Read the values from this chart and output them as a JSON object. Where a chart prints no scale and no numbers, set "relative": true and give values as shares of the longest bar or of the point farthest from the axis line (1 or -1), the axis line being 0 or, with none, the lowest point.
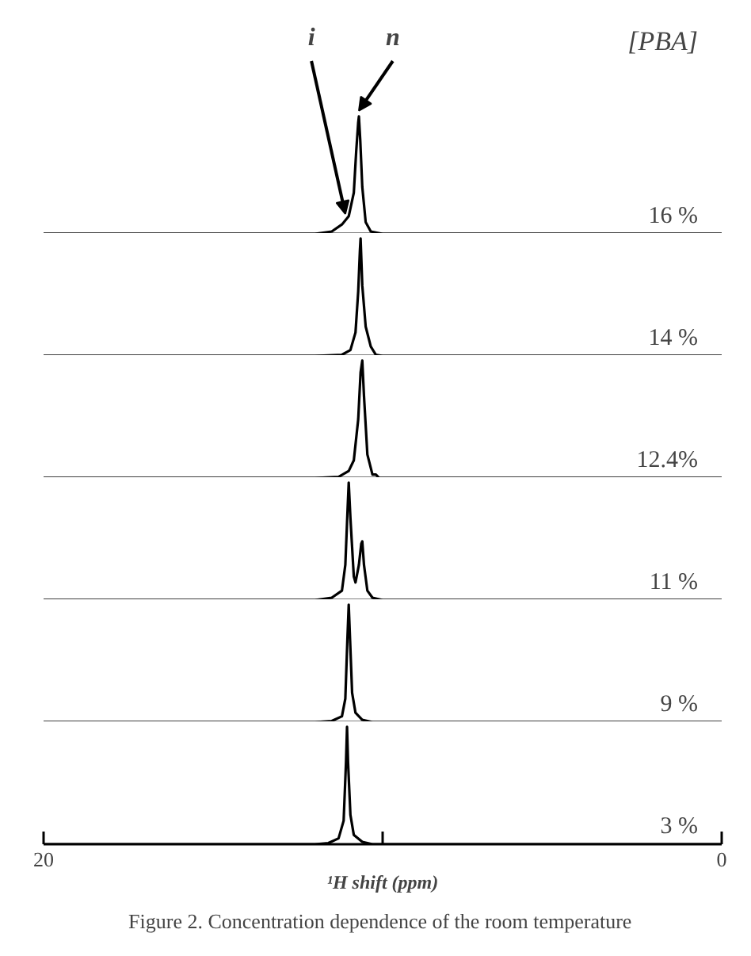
{
  "chart_data": [
    {
      "type": "line",
      "relative": true,
      "xlim": [
        20,
        0
      ],
      "tick_labels": false,
      "annotations": [
        "16 %",
        "[PBA]",
        {
          "text": "i",
          "x": 11.1,
          "y": 0.12
        },
        {
          "text": "n",
          "x": 10.7,
          "y": 1
        }
      ],
      "x": [
        20,
        12,
        11.5,
        11.2,
        11.0,
        10.85,
        10.78,
        10.72,
        10.7,
        10.66,
        10.6,
        10.5,
        10.35,
        10,
        0
      ],
      "series": [
        {
          "color": "#000000",
          "values": [
            0,
            0,
            0.02,
            0.08,
            0.15,
            0.35,
            0.7,
            0.95,
            1,
            0.8,
            0.4,
            0.1,
            0.02,
            0,
            0
          ]
        }
      ]
    },
    {
      "type": "line",
      "relative": true,
      "xlim": [
        20,
        0
      ],
      "tick_labels": false,
      "annotations": [
        "14 %"
      ],
      "x": [
        20,
        12,
        11.2,
        10.95,
        10.8,
        10.72,
        10.67,
        10.65,
        10.6,
        10.5,
        10.35,
        10.2,
        10,
        0
      ],
      "series": [
        {
          "color": "#000000",
          "values": [
            0,
            0,
            0.01,
            0.05,
            0.2,
            0.55,
            0.9,
            1,
            0.6,
            0.25,
            0.08,
            0.01,
            0,
            0
          ]
        }
      ]
    },
    {
      "type": "line",
      "relative": true,
      "xlim": [
        20,
        0
      ],
      "tick_labels": false,
      "annotations": [
        "12.4%"
      ],
      "x": [
        20,
        12,
        11.3,
        11.0,
        10.85,
        10.72,
        10.65,
        10.6,
        10.55,
        10.45,
        10.3,
        10.2,
        10.1,
        10,
        0
      ],
      "series": [
        {
          "color": "#000000",
          "values": [
            0,
            0,
            0.01,
            0.06,
            0.15,
            0.5,
            0.9,
            1,
            0.7,
            0.2,
            0.03,
            0.03,
            0,
            0,
            0
          ]
        }
      ]
    },
    {
      "type": "line",
      "relative": true,
      "xlim": [
        20,
        0
      ],
      "tick_labels": false,
      "annotations": [
        "11 %"
      ],
      "x": [
        20,
        12,
        11.5,
        11.2,
        11.1,
        11.03,
        11.0,
        10.95,
        10.85,
        10.8,
        10.7,
        10.63,
        10.6,
        10.55,
        10.45,
        10.3,
        10,
        0
      ],
      "series": [
        {
          "color": "#000000",
          "values": [
            0,
            0,
            0.02,
            0.08,
            0.3,
            0.8,
            1,
            0.7,
            0.2,
            0.15,
            0.3,
            0.48,
            0.5,
            0.3,
            0.08,
            0.02,
            0,
            0
          ]
        }
      ]
    },
    {
      "type": "line",
      "relative": true,
      "xlim": [
        20,
        0
      ],
      "tick_labels": false,
      "annotations": [
        "9 %"
      ],
      "x": [
        20,
        12,
        11.5,
        11.2,
        11.1,
        11.04,
        11.0,
        10.96,
        10.9,
        10.8,
        10.6,
        10.3,
        0
      ],
      "series": [
        {
          "color": "#000000",
          "values": [
            0,
            0,
            0.01,
            0.05,
            0.2,
            0.7,
            1,
            0.7,
            0.25,
            0.08,
            0.02,
            0,
            0
          ]
        }
      ]
    },
    {
      "type": "line",
      "relative": true,
      "xlim": [
        20,
        0
      ],
      "xticks": [
        20,
        {
          "value": 10,
          "label": null
        },
        0
      ],
      "tick_labels": "x",
      "xlabel": "¹H shift (ppm)",
      "annotations": [
        "3 %",
        "Figure 2.  Concentration dependence of the room temperature"
      ],
      "x": [
        20,
        12,
        11.6,
        11.3,
        11.15,
        11.08,
        11.05,
        11.02,
        10.95,
        10.85,
        10.6,
        10.3,
        0
      ],
      "series": [
        {
          "color": "#000000",
          "values": [
            0,
            0,
            0.01,
            0.05,
            0.2,
            0.7,
            1,
            0.7,
            0.25,
            0.08,
            0.02,
            0,
            0
          ]
        }
      ]
    }
  ]
}
